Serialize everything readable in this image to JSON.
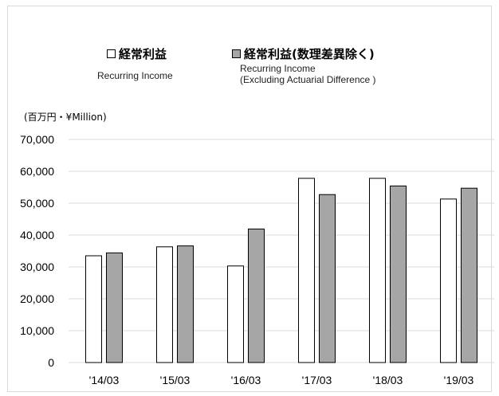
{
  "legend": {
    "series1_jp": "経常利益",
    "series1_en": "Recurring Income",
    "series2_jp": "経常利益(数理差異除く)",
    "series2_en_line1": "Recurring Income",
    "series2_en_line2": "(Excluding Actuarial Difference )"
  },
  "unit_label": "(百万円・¥Million)",
  "colors": {
    "series1_fill": "#ffffff",
    "series2_fill": "#a6a6a6",
    "grid": "#d9d9d9",
    "outline": "#000000"
  },
  "chart_data": {
    "type": "bar",
    "title": "",
    "xlabel": "",
    "ylabel": "",
    "categories": [
      "'14/03",
      "'15/03",
      "'16/03",
      "'17/03",
      "'18/03",
      "'19/03"
    ],
    "y_ticks": [
      "70,000",
      "60,000",
      "50,000",
      "40,000",
      "30,000",
      "20,000",
      "10,000",
      "0"
    ],
    "ylim": [
      0,
      70000
    ],
    "grid": true,
    "legend_position": "top",
    "series": [
      {
        "name": "経常利益 Recurring Income",
        "values": [
          33500,
          36300,
          30300,
          57800,
          57800,
          51300
        ]
      },
      {
        "name": "経常利益(数理差異除く) Recurring Income (Excluding Actuarial Difference )",
        "values": [
          34400,
          36600,
          41900,
          52700,
          55400,
          54700
        ]
      }
    ]
  }
}
